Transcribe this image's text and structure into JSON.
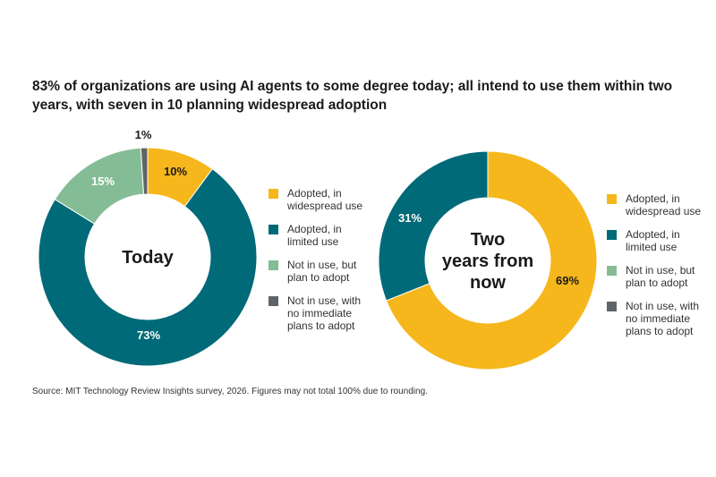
{
  "title": "83% of organizations are using AI agents to some degree today; all intend to use them within two years, with seven in 10 planning widespread adoption",
  "source": "Source: MIT Technology Review Insights survey, 2026. Figures may not total 100% due to rounding.",
  "colors": {
    "widespread": "#F5B71C",
    "limited": "#006A78",
    "plan": "#84BC95",
    "no_plans": "#5F6468"
  },
  "legend": [
    {
      "key": "widespread",
      "label_line1": "Adopted, in",
      "label_line2": "widespread use",
      "label_line3": ""
    },
    {
      "key": "limited",
      "label_line1": "Adopted, in",
      "label_line2": "limited use",
      "label_line3": ""
    },
    {
      "key": "plan",
      "label_line1": "Not in use, but",
      "label_line2": "plan to adopt",
      "label_line3": ""
    },
    {
      "key": "no_plans",
      "label_line1": "Not in use, with",
      "label_line2": "no immediate",
      "label_line3": "plans to adopt"
    }
  ],
  "chart_data": [
    {
      "type": "pie",
      "center_label": [
        "Today"
      ],
      "slices": [
        {
          "key": "widespread",
          "value": 10,
          "label": "10%"
        },
        {
          "key": "limited",
          "value": 73,
          "label": "73%"
        },
        {
          "key": "plan",
          "value": 15,
          "label": "15%"
        },
        {
          "key": "no_plans",
          "value": 1,
          "label": "1%"
        }
      ]
    },
    {
      "type": "pie",
      "center_label": [
        "Two",
        "years from",
        "now"
      ],
      "slices": [
        {
          "key": "widespread",
          "value": 69,
          "label": "69%"
        },
        {
          "key": "limited",
          "value": 31,
          "label": "31%"
        }
      ]
    }
  ]
}
